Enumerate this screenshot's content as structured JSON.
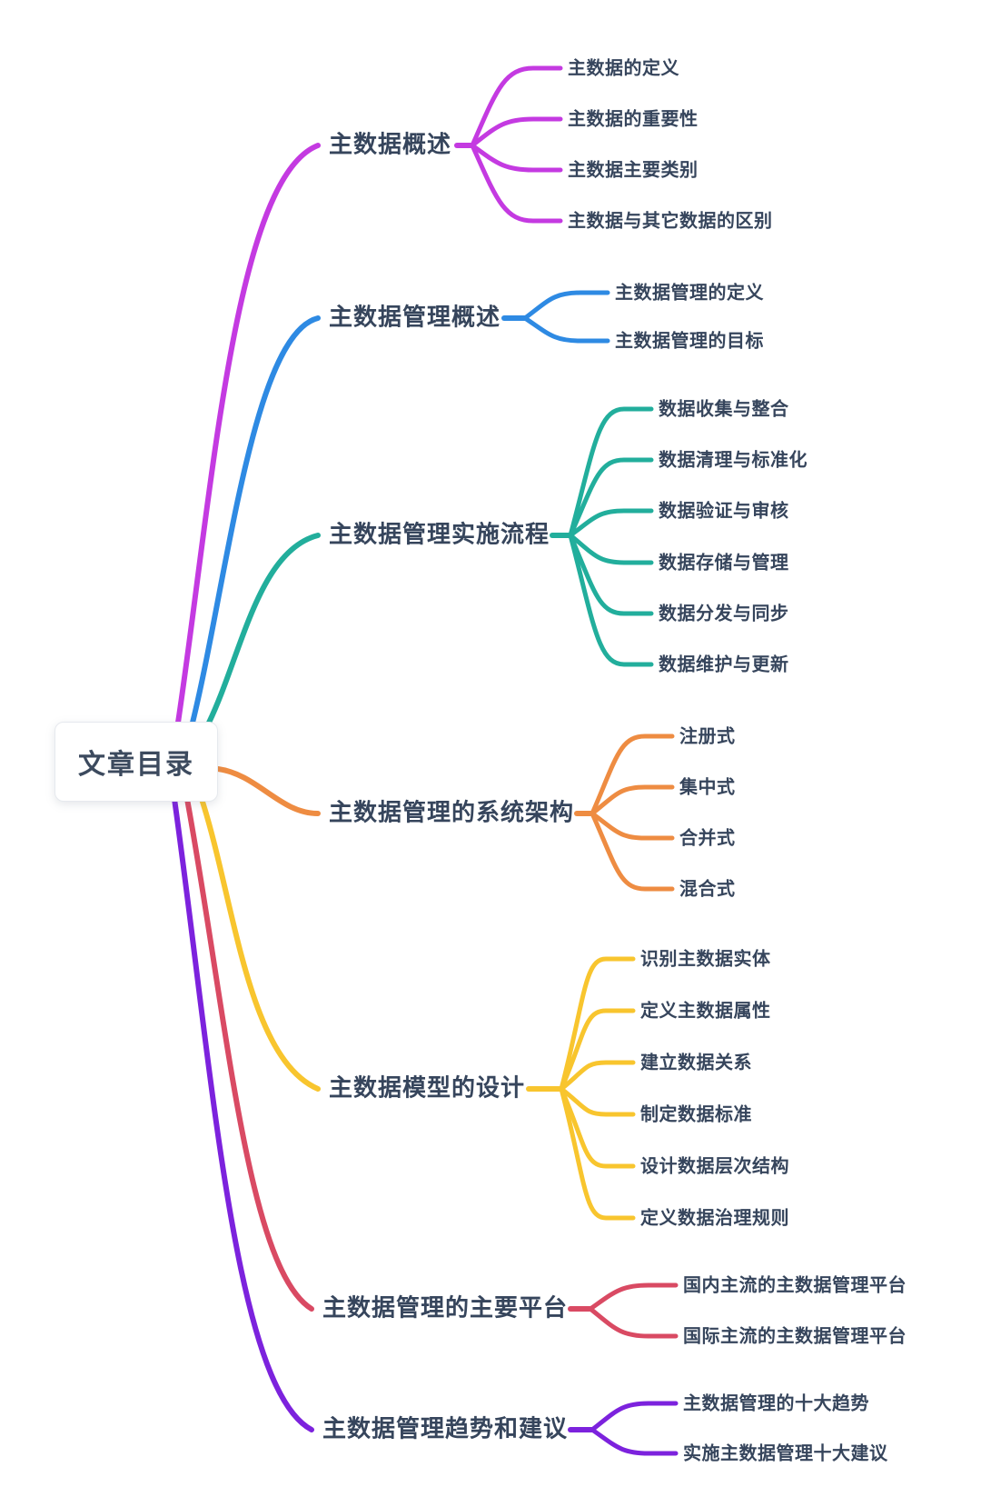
{
  "root": {
    "label": "文章目录"
  },
  "branches": [
    {
      "label": "主数据概述",
      "color": "#c43ae1",
      "children": [
        "主数据的定义",
        "主数据的重要性",
        "主数据主要类别",
        "主数据与其它数据的区别"
      ]
    },
    {
      "label": "主数据管理概述",
      "color": "#2e8ae3",
      "children": [
        "主数据管理的定义",
        "主数据管理的目标"
      ]
    },
    {
      "label": "主数据管理实施流程",
      "color": "#22ae9c",
      "children": [
        "数据收集与整合",
        "数据清理与标准化",
        "数据验证与审核",
        "数据存储与管理",
        "数据分发与同步",
        "数据维护与更新"
      ]
    },
    {
      "label": "主数据管理的系统架构",
      "color": "#ee8c42",
      "children": [
        "注册式",
        "集中式",
        "合并式",
        "混合式"
      ]
    },
    {
      "label": "主数据模型的设计",
      "color": "#f8c52e",
      "children": [
        "识别主数据实体",
        "定义主数据属性",
        "建立数据关系",
        "制定数据标准",
        "设计数据层次结构",
        "定义数据治理规则"
      ]
    },
    {
      "label": "主数据管理的主要平台",
      "color": "#d94a63",
      "children": [
        "国内主流的主数据管理平台",
        "国际主流的主数据管理平台"
      ]
    },
    {
      "label": "主数据管理趋势和建议",
      "color": "#7c22dd",
      "children": [
        "主数据管理的十大趋势",
        "实施主数据管理十大建议"
      ]
    }
  ],
  "colors": {
    "text": "#36455c",
    "background": "#ffffff",
    "root_background": "#ffffff"
  }
}
